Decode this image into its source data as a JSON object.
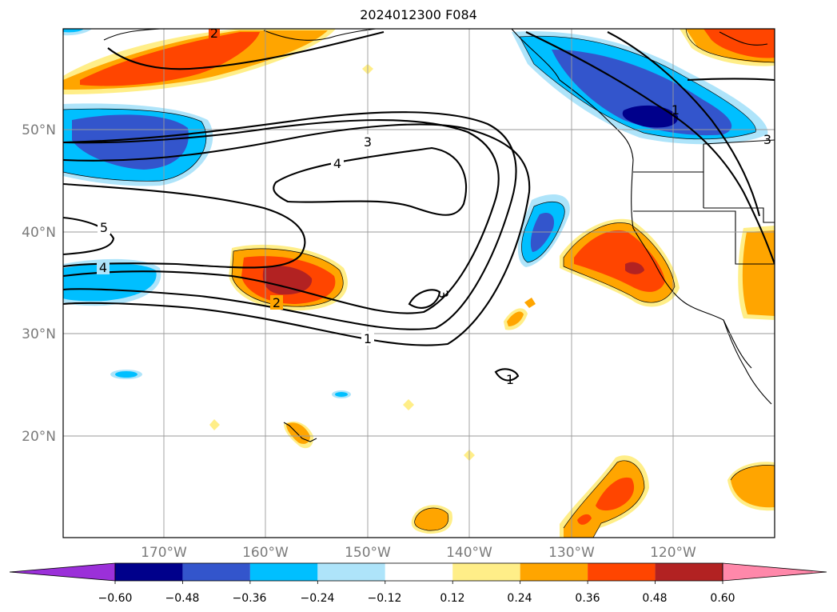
{
  "title": "2024012300 F084",
  "map": {
    "lon_labels": [
      "170°W",
      "160°W",
      "150°W",
      "140°W",
      "130°W",
      "120°W"
    ],
    "lat_labels": [
      "50°N",
      "40°N",
      "30°N",
      "20°N"
    ],
    "contour_labels": [
      "2",
      "3",
      "4",
      "5",
      "4",
      "2",
      "3",
      "1",
      "1",
      "1",
      "3"
    ]
  },
  "colorbar": {
    "colors": [
      "#9b30d9",
      "#00008b",
      "#3355cc",
      "#00bfff",
      "#aee4fa",
      "#ffffff",
      "#ffee88",
      "#ffa500",
      "#ff4500",
      "#b22222",
      "#ff88aa"
    ],
    "tick_labels": [
      "−0.60",
      "−0.48",
      "−0.36",
      "−0.24",
      "−0.12",
      "0.12",
      "0.24",
      "0.36",
      "0.48",
      "0.60"
    ]
  }
}
